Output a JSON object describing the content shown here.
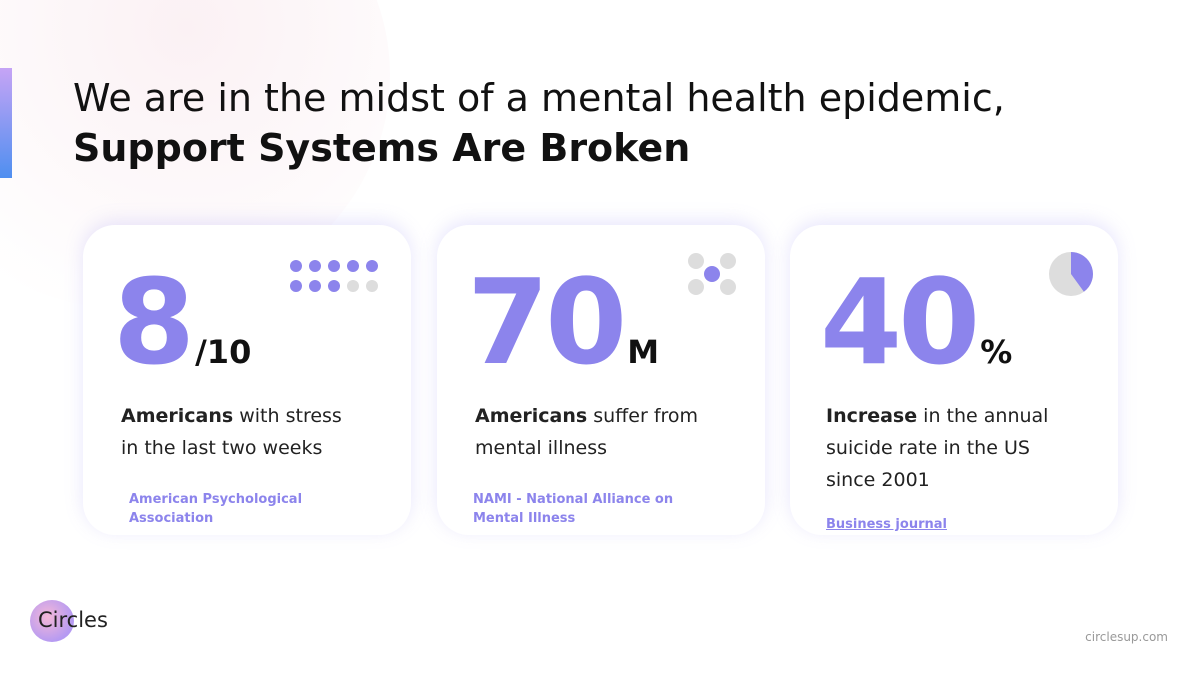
{
  "header": {
    "title_line1": "We are in the midst of a mental health epidemic,",
    "title_line2": "Support Systems Are Broken"
  },
  "cards": [
    {
      "number": "8",
      "suffix": "/10",
      "bold": "Americans",
      "text": " with stress in the last two weeks",
      "source": "American Psychological Association"
    },
    {
      "number": "70",
      "suffix": "M",
      "bold": "Americans",
      "text": " suffer from mental illness",
      "source": "NAMI - National Alliance on Mental Illness"
    },
    {
      "number": "40",
      "suffix": "%",
      "bold": "Increase",
      "text": " in the annual suicide rate in the US since 2001",
      "source": "Business journal"
    }
  ],
  "footer": {
    "logo": "Circles",
    "url": "circlesup.com"
  }
}
